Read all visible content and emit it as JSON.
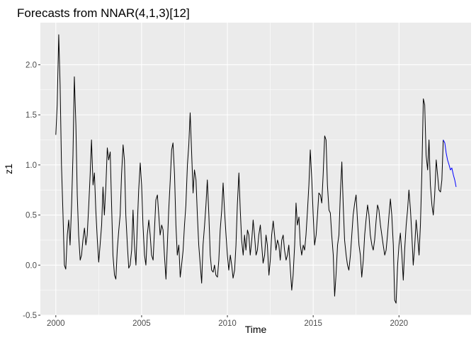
{
  "chart_data": {
    "type": "line",
    "title": "Forecasts from NNAR(4,1,3)[12]",
    "xlabel": "Time",
    "ylabel": "z1",
    "xlim": [
      1999.1,
      2024.2
    ],
    "ylim": [
      -0.5,
      2.42
    ],
    "x_ticks": [
      2000,
      2005,
      2010,
      2015,
      2020
    ],
    "y_ticks": [
      -0.5,
      0.0,
      0.5,
      1.0,
      1.5,
      2.0
    ],
    "x_tick_labels": [
      "2000",
      "2005",
      "2010",
      "2015",
      "2020"
    ],
    "y_tick_labels": [
      "-0.5",
      "0.0",
      "0.5",
      "1.0",
      "1.5",
      "2.0"
    ],
    "grid": true,
    "series": [
      {
        "role": "observed",
        "color": "#000000",
        "points": [
          [
            2000.0,
            1.3
          ],
          [
            2000.08,
            1.6
          ],
          [
            2000.17,
            2.3
          ],
          [
            2000.25,
            1.8
          ],
          [
            2000.33,
            1.0
          ],
          [
            2000.42,
            0.5
          ],
          [
            2000.5,
            0.0
          ],
          [
            2000.58,
            -0.04
          ],
          [
            2000.67,
            0.3
          ],
          [
            2000.75,
            0.45
          ],
          [
            2000.83,
            0.2
          ],
          [
            2000.92,
            0.6
          ],
          [
            2001.0,
            1.1
          ],
          [
            2001.08,
            1.88
          ],
          [
            2001.17,
            1.4
          ],
          [
            2001.25,
            0.7
          ],
          [
            2001.33,
            0.3
          ],
          [
            2001.42,
            0.05
          ],
          [
            2001.5,
            0.1
          ],
          [
            2001.58,
            0.25
          ],
          [
            2001.67,
            0.37
          ],
          [
            2001.75,
            0.2
          ],
          [
            2001.83,
            0.3
          ],
          [
            2001.92,
            0.6
          ],
          [
            2002.0,
            0.9
          ],
          [
            2002.08,
            1.25
          ],
          [
            2002.17,
            0.8
          ],
          [
            2002.25,
            0.92
          ],
          [
            2002.33,
            0.55
          ],
          [
            2002.42,
            0.25
          ],
          [
            2002.5,
            0.03
          ],
          [
            2002.58,
            0.2
          ],
          [
            2002.67,
            0.4
          ],
          [
            2002.75,
            0.78
          ],
          [
            2002.83,
            0.5
          ],
          [
            2002.92,
            0.8
          ],
          [
            2003.0,
            1.17
          ],
          [
            2003.08,
            1.05
          ],
          [
            2003.17,
            1.13
          ],
          [
            2003.25,
            0.6
          ],
          [
            2003.33,
            0.1
          ],
          [
            2003.42,
            -0.1
          ],
          [
            2003.5,
            -0.14
          ],
          [
            2003.58,
            0.15
          ],
          [
            2003.67,
            0.35
          ],
          [
            2003.75,
            0.5
          ],
          [
            2003.83,
            0.9
          ],
          [
            2003.92,
            1.2
          ],
          [
            2004.0,
            1.05
          ],
          [
            2004.08,
            0.5
          ],
          [
            2004.17,
            0.2
          ],
          [
            2004.25,
            -0.03
          ],
          [
            2004.33,
            0.0
          ],
          [
            2004.42,
            0.15
          ],
          [
            2004.5,
            0.55
          ],
          [
            2004.58,
            0.2
          ],
          [
            2004.67,
            0.0
          ],
          [
            2004.75,
            0.4
          ],
          [
            2004.83,
            0.75
          ],
          [
            2004.92,
            1.02
          ],
          [
            2005.0,
            0.8
          ],
          [
            2005.08,
            0.4
          ],
          [
            2005.17,
            0.1
          ],
          [
            2005.25,
            0.0
          ],
          [
            2005.33,
            0.3
          ],
          [
            2005.42,
            0.45
          ],
          [
            2005.5,
            0.3
          ],
          [
            2005.58,
            0.1
          ],
          [
            2005.67,
            0.05
          ],
          [
            2005.75,
            0.35
          ],
          [
            2005.83,
            0.65
          ],
          [
            2005.92,
            0.7
          ],
          [
            2006.0,
            0.5
          ],
          [
            2006.08,
            0.3
          ],
          [
            2006.17,
            0.4
          ],
          [
            2006.25,
            0.35
          ],
          [
            2006.33,
            0.1
          ],
          [
            2006.42,
            -0.14
          ],
          [
            2006.5,
            0.2
          ],
          [
            2006.58,
            0.55
          ],
          [
            2006.67,
            0.85
          ],
          [
            2006.75,
            1.15
          ],
          [
            2006.83,
            1.22
          ],
          [
            2006.92,
            0.9
          ],
          [
            2007.0,
            0.4
          ],
          [
            2007.08,
            0.1
          ],
          [
            2007.17,
            0.2
          ],
          [
            2007.25,
            -0.12
          ],
          [
            2007.33,
            0.0
          ],
          [
            2007.42,
            0.15
          ],
          [
            2007.5,
            0.4
          ],
          [
            2007.58,
            0.6
          ],
          [
            2007.67,
            1.0
          ],
          [
            2007.75,
            1.2
          ],
          [
            2007.83,
            1.52
          ],
          [
            2007.92,
            1.1
          ],
          [
            2008.0,
            0.72
          ],
          [
            2008.08,
            0.95
          ],
          [
            2008.17,
            0.85
          ],
          [
            2008.25,
            0.5
          ],
          [
            2008.33,
            0.2
          ],
          [
            2008.42,
            0.0
          ],
          [
            2008.5,
            -0.18
          ],
          [
            2008.58,
            0.2
          ],
          [
            2008.67,
            0.4
          ],
          [
            2008.75,
            0.6
          ],
          [
            2008.83,
            0.85
          ],
          [
            2008.92,
            0.5
          ],
          [
            2009.0,
            0.1
          ],
          [
            2009.08,
            -0.05
          ],
          [
            2009.17,
            -0.07
          ],
          [
            2009.25,
            0.0
          ],
          [
            2009.33,
            -0.1
          ],
          [
            2009.42,
            -0.12
          ],
          [
            2009.5,
            0.05
          ],
          [
            2009.58,
            0.35
          ],
          [
            2009.67,
            0.55
          ],
          [
            2009.75,
            0.82
          ],
          [
            2009.83,
            0.55
          ],
          [
            2009.92,
            0.3
          ],
          [
            2010.0,
            0.1
          ],
          [
            2010.08,
            -0.05
          ],
          [
            2010.17,
            0.1
          ],
          [
            2010.25,
            0.0
          ],
          [
            2010.33,
            -0.13
          ],
          [
            2010.42,
            -0.05
          ],
          [
            2010.5,
            0.2
          ],
          [
            2010.58,
            0.6
          ],
          [
            2010.67,
            0.92
          ],
          [
            2010.75,
            0.55
          ],
          [
            2010.83,
            0.25
          ],
          [
            2010.92,
            0.1
          ],
          [
            2011.0,
            0.3
          ],
          [
            2011.08,
            0.15
          ],
          [
            2011.17,
            0.35
          ],
          [
            2011.25,
            0.3
          ],
          [
            2011.33,
            0.1
          ],
          [
            2011.42,
            0.25
          ],
          [
            2011.5,
            0.45
          ],
          [
            2011.58,
            0.3
          ],
          [
            2011.67,
            0.1
          ],
          [
            2011.75,
            0.15
          ],
          [
            2011.83,
            0.3
          ],
          [
            2011.92,
            0.4
          ],
          [
            2012.0,
            0.2
          ],
          [
            2012.08,
            0.02
          ],
          [
            2012.17,
            0.1
          ],
          [
            2012.25,
            0.3
          ],
          [
            2012.33,
            0.2
          ],
          [
            2012.42,
            -0.1
          ],
          [
            2012.5,
            0.05
          ],
          [
            2012.58,
            0.3
          ],
          [
            2012.67,
            0.44
          ],
          [
            2012.75,
            0.3
          ],
          [
            2012.83,
            0.15
          ],
          [
            2012.92,
            0.25
          ],
          [
            2013.0,
            0.2
          ],
          [
            2013.08,
            0.05
          ],
          [
            2013.17,
            0.25
          ],
          [
            2013.25,
            0.3
          ],
          [
            2013.33,
            0.15
          ],
          [
            2013.42,
            0.05
          ],
          [
            2013.5,
            0.1
          ],
          [
            2013.58,
            0.2
          ],
          [
            2013.67,
            -0.05
          ],
          [
            2013.75,
            -0.25
          ],
          [
            2013.83,
            -0.1
          ],
          [
            2013.92,
            0.2
          ],
          [
            2014.0,
            0.62
          ],
          [
            2014.08,
            0.4
          ],
          [
            2014.17,
            0.48
          ],
          [
            2014.25,
            0.2
          ],
          [
            2014.33,
            0.1
          ],
          [
            2014.42,
            0.2
          ],
          [
            2014.5,
            0.15
          ],
          [
            2014.58,
            0.3
          ],
          [
            2014.67,
            0.55
          ],
          [
            2014.75,
            0.8
          ],
          [
            2014.83,
            1.15
          ],
          [
            2014.92,
            0.85
          ],
          [
            2015.0,
            0.5
          ],
          [
            2015.08,
            0.2
          ],
          [
            2015.17,
            0.3
          ],
          [
            2015.25,
            0.5
          ],
          [
            2015.33,
            0.72
          ],
          [
            2015.42,
            0.7
          ],
          [
            2015.5,
            0.62
          ],
          [
            2015.58,
            0.9
          ],
          [
            2015.67,
            1.29
          ],
          [
            2015.75,
            1.25
          ],
          [
            2015.83,
            0.8
          ],
          [
            2015.92,
            0.55
          ],
          [
            2016.0,
            0.52
          ],
          [
            2016.08,
            0.3
          ],
          [
            2016.17,
            0.1
          ],
          [
            2016.25,
            -0.31
          ],
          [
            2016.33,
            -0.1
          ],
          [
            2016.42,
            0.2
          ],
          [
            2016.5,
            0.3
          ],
          [
            2016.58,
            0.7
          ],
          [
            2016.67,
            1.03
          ],
          [
            2016.75,
            0.6
          ],
          [
            2016.83,
            0.25
          ],
          [
            2016.92,
            0.1
          ],
          [
            2017.0,
            0.0
          ],
          [
            2017.08,
            -0.05
          ],
          [
            2017.17,
            0.1
          ],
          [
            2017.25,
            0.3
          ],
          [
            2017.33,
            0.5
          ],
          [
            2017.42,
            0.62
          ],
          [
            2017.5,
            0.7
          ],
          [
            2017.58,
            0.45
          ],
          [
            2017.67,
            0.2
          ],
          [
            2017.75,
            0.1
          ],
          [
            2017.83,
            -0.12
          ],
          [
            2017.92,
            0.05
          ],
          [
            2018.0,
            0.3
          ],
          [
            2018.08,
            0.45
          ],
          [
            2018.17,
            0.6
          ],
          [
            2018.25,
            0.5
          ],
          [
            2018.33,
            0.3
          ],
          [
            2018.42,
            0.2
          ],
          [
            2018.5,
            0.15
          ],
          [
            2018.58,
            0.25
          ],
          [
            2018.67,
            0.45
          ],
          [
            2018.75,
            0.6
          ],
          [
            2018.83,
            0.55
          ],
          [
            2018.92,
            0.4
          ],
          [
            2019.0,
            0.3
          ],
          [
            2019.08,
            0.2
          ],
          [
            2019.17,
            0.1
          ],
          [
            2019.25,
            0.15
          ],
          [
            2019.33,
            0.3
          ],
          [
            2019.42,
            0.5
          ],
          [
            2019.5,
            0.66
          ],
          [
            2019.58,
            0.5
          ],
          [
            2019.67,
            0.2
          ],
          [
            2019.75,
            -0.35
          ],
          [
            2019.83,
            -0.38
          ],
          [
            2019.92,
            0.0
          ],
          [
            2020.0,
            0.2
          ],
          [
            2020.08,
            0.32
          ],
          [
            2020.17,
            0.1
          ],
          [
            2020.25,
            -0.15
          ],
          [
            2020.33,
            0.15
          ],
          [
            2020.42,
            0.4
          ],
          [
            2020.5,
            0.55
          ],
          [
            2020.58,
            0.75
          ],
          [
            2020.67,
            0.55
          ],
          [
            2020.75,
            0.3
          ],
          [
            2020.83,
            0.0
          ],
          [
            2020.92,
            0.2
          ],
          [
            2021.0,
            0.45
          ],
          [
            2021.08,
            0.3
          ],
          [
            2021.17,
            0.1
          ],
          [
            2021.25,
            0.4
          ],
          [
            2021.33,
            0.9
          ],
          [
            2021.42,
            1.66
          ],
          [
            2021.5,
            1.6
          ],
          [
            2021.58,
            1.1
          ],
          [
            2021.67,
            0.95
          ],
          [
            2021.75,
            1.25
          ],
          [
            2021.83,
            0.8
          ],
          [
            2021.92,
            0.6
          ],
          [
            2022.0,
            0.5
          ],
          [
            2022.08,
            0.7
          ],
          [
            2022.17,
            1.05
          ],
          [
            2022.25,
            0.9
          ],
          [
            2022.33,
            0.75
          ],
          [
            2022.42,
            0.73
          ],
          [
            2022.5,
            0.85
          ],
          [
            2022.58,
            1.25
          ]
        ]
      },
      {
        "role": "forecast",
        "color": "#0000ff",
        "points": [
          [
            2022.58,
            1.25
          ],
          [
            2022.67,
            1.22
          ],
          [
            2022.75,
            1.12
          ],
          [
            2022.83,
            1.05
          ],
          [
            2022.92,
            1.0
          ],
          [
            2023.0,
            0.95
          ],
          [
            2023.08,
            0.97
          ],
          [
            2023.17,
            0.9
          ],
          [
            2023.25,
            0.85
          ],
          [
            2023.33,
            0.78
          ]
        ]
      }
    ]
  }
}
